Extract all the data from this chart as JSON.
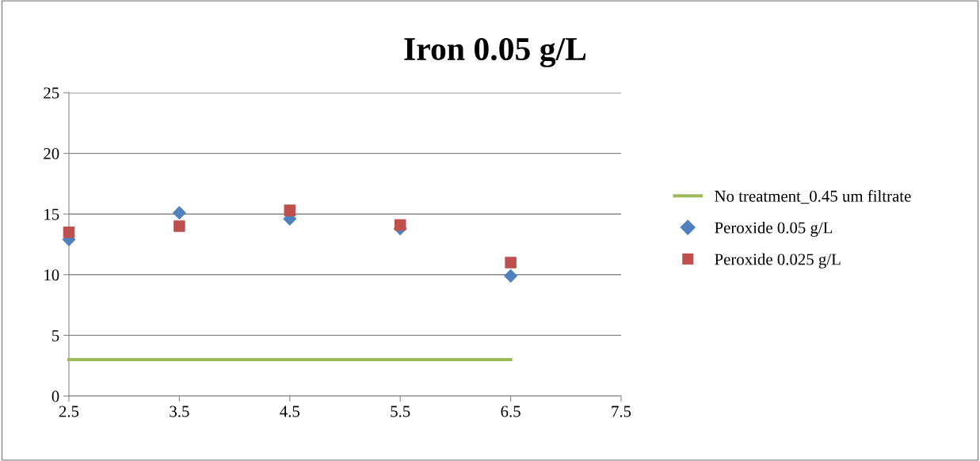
{
  "chart_data": {
    "type": "scatter",
    "title": "Iron 0.05 g/L",
    "xlim": [
      2.5,
      7.5
    ],
    "xticks": [
      2.5,
      3.5,
      4.5,
      5.5,
      6.5,
      7.5
    ],
    "ylim": [
      0,
      25
    ],
    "yticks": [
      0,
      5,
      10,
      15,
      20,
      25
    ],
    "grid": "y",
    "legend": "right",
    "series": [
      {
        "name": "No treatment_0.45 um filtrate",
        "type": "line",
        "color": "#9bbb59",
        "x": [
          2.5,
          6.5
        ],
        "values": [
          3,
          3
        ],
        "marker": "none"
      },
      {
        "name": "Peroxide 0.05 g/L",
        "color": "#4f81bd",
        "x": [
          2.5,
          3.5,
          4.5,
          5.5,
          6.5
        ],
        "values": [
          12.9,
          15.1,
          14.6,
          13.8,
          9.9
        ],
        "marker": "diamond"
      },
      {
        "name": "Peroxide 0.025 g/L",
        "color": "#c0504d",
        "x": [
          2.5,
          3.5,
          4.5,
          5.5,
          6.5
        ],
        "values": [
          13.5,
          14.0,
          15.3,
          14.1,
          11.0
        ],
        "marker": "square"
      }
    ]
  }
}
